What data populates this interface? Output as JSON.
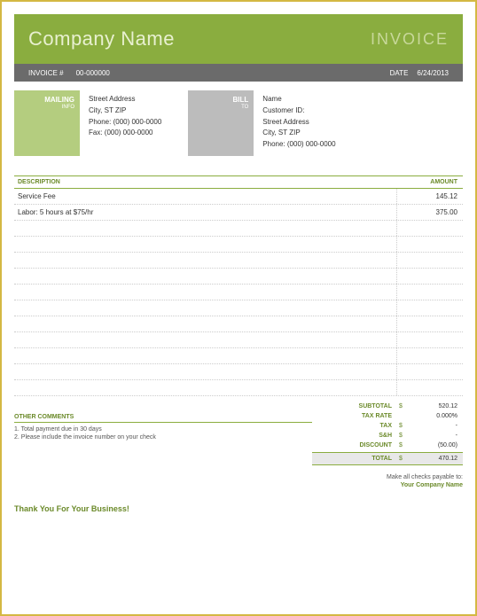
{
  "header": {
    "company": "Company Name",
    "title": "INVOICE"
  },
  "meta": {
    "invoice_label": "INVOICE #",
    "invoice_no": "00-000000",
    "date_label": "DATE",
    "date": "6/24/2013"
  },
  "mailing": {
    "box_label": "MAILING",
    "box_sub": "INFO",
    "street": "Street Address",
    "city": "City, ST  ZIP",
    "phone": "Phone: (000) 000-0000",
    "fax": "Fax: (000) 000-0000"
  },
  "bill": {
    "box_label": "BILL",
    "box_sub": "TO",
    "name": "Name",
    "customer": "Customer ID:",
    "street": "Street Address",
    "city": "City, ST  ZIP",
    "phone": "Phone: (000) 000-0000"
  },
  "table": {
    "head_desc": "DESCRIPTION",
    "head_amt": "AMOUNT",
    "rows": [
      {
        "desc": "Service Fee",
        "amt": "145.12"
      },
      {
        "desc": "Labor: 5 hours at $75/hr",
        "amt": "375.00"
      },
      {
        "desc": "",
        "amt": ""
      },
      {
        "desc": "",
        "amt": ""
      },
      {
        "desc": "",
        "amt": ""
      },
      {
        "desc": "",
        "amt": ""
      },
      {
        "desc": "",
        "amt": ""
      },
      {
        "desc": "",
        "amt": ""
      },
      {
        "desc": "",
        "amt": ""
      },
      {
        "desc": "",
        "amt": ""
      },
      {
        "desc": "",
        "amt": ""
      },
      {
        "desc": "",
        "amt": ""
      },
      {
        "desc": "",
        "amt": ""
      }
    ]
  },
  "comments": {
    "header": "OTHER COMMENTS",
    "l1": "1. Total payment due in 30 days",
    "l2": "2. Please include the invoice number on your check"
  },
  "totals": {
    "subtotal_label": "SUBTOTAL",
    "subtotal": "520.12",
    "taxrate_label": "TAX RATE",
    "taxrate": "0.000%",
    "tax_label": "TAX",
    "tax": "-",
    "ssh_label": "S&H",
    "ssh": "-",
    "discount_label": "DISCOUNT",
    "discount": "(50.00)",
    "total_label": "TOTAL",
    "total": "470.12",
    "cur": "$"
  },
  "payable": {
    "text": "Make all checks payable to:",
    "to": "Your Company Name"
  },
  "thanks": "Thank You For Your Business!"
}
